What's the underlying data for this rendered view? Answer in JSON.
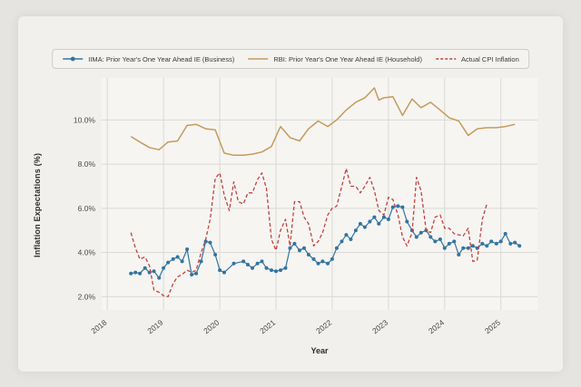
{
  "figure": {
    "bg_outer": "#e6e4e1",
    "bg_figure": "#f1f0ed",
    "bg_plot": "#f6f5f2",
    "grid_color": "#dbd9d4",
    "tick_color": "#4a4a4a",
    "text_color": "#2b2b2b"
  },
  "chart_data": {
    "type": "line",
    "title": "",
    "xlabel": "Year",
    "ylabel": "Inflation Expectations (%)",
    "xlim": [
      2017.9,
      2025.65
    ],
    "ylim": [
      1.4,
      11.9
    ],
    "grid": true,
    "legend_position": "top",
    "xticks": {
      "values": [
        2018,
        2019,
        2020,
        2021,
        2022,
        2023,
        2024,
        2025
      ],
      "labels": [
        "2018",
        "2019",
        "2020",
        "2021",
        "2022",
        "2023",
        "2024",
        "2025"
      ]
    },
    "yticks": {
      "values": [
        2,
        4,
        6,
        8,
        10
      ],
      "labels": [
        "2.0%",
        "4.0%",
        "6.0%",
        "8.0%",
        "10.0%"
      ]
    },
    "series": [
      {
        "name": "IIMA: Prior Year's One Year Ahead IE (Business)",
        "color": "#3274a1",
        "marker": true,
        "width": 1.2,
        "dash": null,
        "x": [
          2018.42,
          2018.5,
          2018.58,
          2018.67,
          2018.75,
          2018.83,
          2018.92,
          2019.0,
          2019.08,
          2019.17,
          2019.25,
          2019.33,
          2019.42,
          2019.5,
          2019.58,
          2019.67,
          2019.75,
          2019.83,
          2019.92,
          2020.0,
          2020.08,
          2020.25,
          2020.42,
          2020.5,
          2020.58,
          2020.67,
          2020.75,
          2020.83,
          2020.92,
          2021.0,
          2021.08,
          2021.17,
          2021.25,
          2021.33,
          2021.42,
          2021.5,
          2021.58,
          2021.67,
          2021.75,
          2021.83,
          2021.92,
          2022.0,
          2022.08,
          2022.17,
          2022.25,
          2022.33,
          2022.42,
          2022.5,
          2022.58,
          2022.67,
          2022.75,
          2022.83,
          2022.92,
          2023.0,
          2023.08,
          2023.17,
          2023.25,
          2023.33,
          2023.42,
          2023.5,
          2023.58,
          2023.67,
          2023.75,
          2023.83,
          2023.92,
          2024.0,
          2024.08,
          2024.17,
          2024.25,
          2024.33,
          2024.42,
          2024.5,
          2024.58,
          2024.67,
          2024.75,
          2024.83,
          2024.92,
          2025.0,
          2025.08,
          2025.17,
          2025.25,
          2025.33
        ],
        "y": [
          3.05,
          3.1,
          3.05,
          3.3,
          3.1,
          3.15,
          2.85,
          3.3,
          3.55,
          3.7,
          3.8,
          3.6,
          4.15,
          3.0,
          3.05,
          3.6,
          4.5,
          4.45,
          3.9,
          3.2,
          3.1,
          3.5,
          3.6,
          3.45,
          3.3,
          3.5,
          3.6,
          3.3,
          3.2,
          3.15,
          3.2,
          3.3,
          4.2,
          4.4,
          4.1,
          4.2,
          3.9,
          3.7,
          3.5,
          3.6,
          3.5,
          3.7,
          4.2,
          4.5,
          4.8,
          4.6,
          5.0,
          5.3,
          5.15,
          5.4,
          5.6,
          5.3,
          5.6,
          5.5,
          6.05,
          6.1,
          6.05,
          5.4,
          5.0,
          4.7,
          4.9,
          5.0,
          4.7,
          4.5,
          4.6,
          4.2,
          4.4,
          4.5,
          3.9,
          4.2,
          4.2,
          4.3,
          4.2,
          4.4,
          4.3,
          4.5,
          4.4,
          4.5,
          4.85,
          4.4,
          4.45,
          4.3
        ]
      },
      {
        "name": "RBI: Prior Year's One Year Ahead IE (Household)",
        "color": "#c79a5b",
        "marker": false,
        "width": 1.5,
        "dash": null,
        "x": [
          2018.42,
          2018.58,
          2018.75,
          2018.92,
          2019.08,
          2019.25,
          2019.42,
          2019.58,
          2019.75,
          2019.92,
          2020.08,
          2020.25,
          2020.42,
          2020.58,
          2020.75,
          2020.92,
          2021.08,
          2021.25,
          2021.42,
          2021.58,
          2021.75,
          2021.92,
          2022.08,
          2022.25,
          2022.42,
          2022.58,
          2022.75,
          2022.83,
          2022.92,
          2023.08,
          2023.25,
          2023.42,
          2023.58,
          2023.75,
          2023.92,
          2024.08,
          2024.25,
          2024.42,
          2024.58,
          2024.75,
          2024.92,
          2025.08,
          2025.25
        ],
        "y": [
          9.25,
          9.0,
          8.75,
          8.65,
          9.0,
          9.05,
          9.75,
          9.8,
          9.6,
          9.55,
          8.5,
          8.4,
          8.4,
          8.45,
          8.55,
          8.8,
          9.7,
          9.2,
          9.05,
          9.6,
          9.95,
          9.7,
          10.0,
          10.45,
          10.8,
          11.0,
          11.45,
          10.9,
          11.0,
          11.05,
          10.2,
          10.95,
          10.55,
          10.8,
          10.45,
          10.1,
          9.95,
          9.3,
          9.6,
          9.65,
          9.65,
          9.7,
          9.8
        ]
      },
      {
        "name": "Actual CPI Inflation",
        "color": "#c2423d",
        "marker": false,
        "width": 1.3,
        "dash": "4 2.5",
        "x": [
          2018.42,
          2018.5,
          2018.58,
          2018.67,
          2018.75,
          2018.83,
          2018.92,
          2019.0,
          2019.08,
          2019.17,
          2019.25,
          2019.33,
          2019.42,
          2019.5,
          2019.58,
          2019.67,
          2019.75,
          2019.83,
          2019.92,
          2020.0,
          2020.08,
          2020.17,
          2020.25,
          2020.33,
          2020.42,
          2020.5,
          2020.58,
          2020.67,
          2020.75,
          2020.83,
          2020.92,
          2021.0,
          2021.08,
          2021.17,
          2021.25,
          2021.33,
          2021.42,
          2021.5,
          2021.58,
          2021.67,
          2021.75,
          2021.83,
          2021.92,
          2022.0,
          2022.08,
          2022.17,
          2022.25,
          2022.33,
          2022.42,
          2022.5,
          2022.58,
          2022.67,
          2022.75,
          2022.83,
          2022.92,
          2023.0,
          2023.08,
          2023.17,
          2023.25,
          2023.33,
          2023.42,
          2023.5,
          2023.58,
          2023.67,
          2023.75,
          2023.83,
          2023.92,
          2024.0,
          2024.08,
          2024.17,
          2024.25,
          2024.33,
          2024.42,
          2024.5,
          2024.58,
          2024.67,
          2024.75
        ],
        "y": [
          4.9,
          4.2,
          3.7,
          3.8,
          3.4,
          2.3,
          2.2,
          2.05,
          2.0,
          2.6,
          2.9,
          3.0,
          3.2,
          3.1,
          3.2,
          4.0,
          4.6,
          5.5,
          7.35,
          7.6,
          6.6,
          5.9,
          7.2,
          6.3,
          6.2,
          6.7,
          6.7,
          7.3,
          7.6,
          6.9,
          4.6,
          4.1,
          5.0,
          5.5,
          4.3,
          6.3,
          6.3,
          5.6,
          5.3,
          4.3,
          4.5,
          4.9,
          5.7,
          6.0,
          6.1,
          7.0,
          7.8,
          7.0,
          7.0,
          6.7,
          7.0,
          7.4,
          6.8,
          5.9,
          5.7,
          6.5,
          6.4,
          5.7,
          4.7,
          4.3,
          4.9,
          7.4,
          6.8,
          5.0,
          4.9,
          5.6,
          5.7,
          5.1,
          5.1,
          4.85,
          4.8,
          4.75,
          5.1,
          3.6,
          3.65,
          5.5,
          6.2
        ]
      }
    ]
  }
}
